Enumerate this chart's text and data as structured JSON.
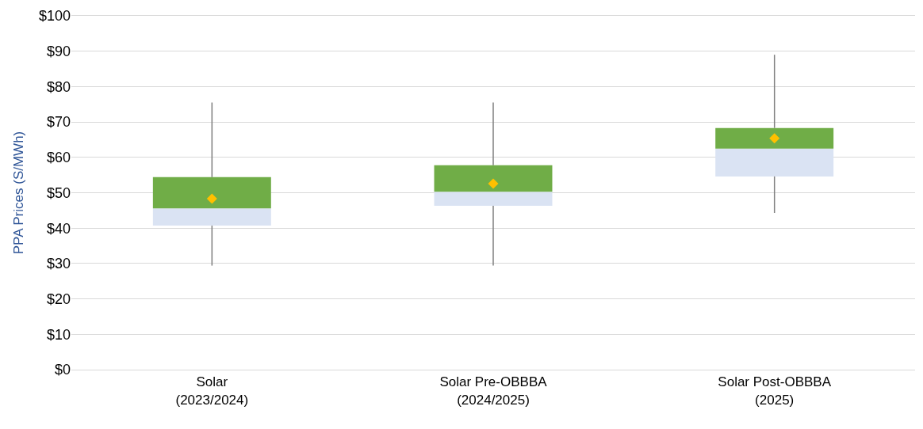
{
  "chart_data": {
    "type": "box",
    "ylabel": "PPA Prices (S/MWh)",
    "categories": [
      "Solar\n(2023/2024)",
      "Solar Pre-OBBBA\n(2024/2025)",
      "Solar Post-OBBBA\n(2025)"
    ],
    "series": [
      {
        "color": "#70ad47",
        "colors": [
          "#dae3f3",
          "#dae3f3",
          "#dae3f3"
        ],
        "boxes": [
          {
            "low": 29.4,
            "q1": 40.7,
            "median": 45.6,
            "q3": 54.4,
            "high": 75.5
          },
          {
            "low": 29.4,
            "q1": 46.3,
            "median": 50.3,
            "q3": 57.8,
            "high": 75.5
          },
          {
            "low": 44.3,
            "q1": 54.6,
            "median": 62.5,
            "q3": 68.3,
            "high": 89
          }
        ]
      },
      {
        "type": "scatter",
        "color": "#ffc000",
        "x": [
          "Solar\n(2023/2024)",
          "Solar Pre-OBBBA\n(2024/2025)",
          "Solar Post-OBBBA\n(2025)"
        ],
        "values": [
          48.3,
          52.6,
          65.4
        ]
      }
    ],
    "marker": "diamond",
    "ylim": [
      0,
      100
    ],
    "yticks": [
      {
        "value": 0,
        "label": "$0"
      },
      {
        "value": 10,
        "label": "$10"
      },
      {
        "value": 20,
        "label": "$20"
      },
      {
        "value": 30,
        "label": "$30"
      },
      {
        "value": 40,
        "label": "$40"
      },
      {
        "value": 50,
        "label": "$50"
      },
      {
        "value": 60,
        "label": "$60"
      },
      {
        "value": 70,
        "label": "$70"
      },
      {
        "value": 80,
        "label": "$80"
      },
      {
        "value": 90,
        "label": "$90"
      },
      {
        "value": 100,
        "label": "$100"
      }
    ],
    "grid": "y"
  }
}
